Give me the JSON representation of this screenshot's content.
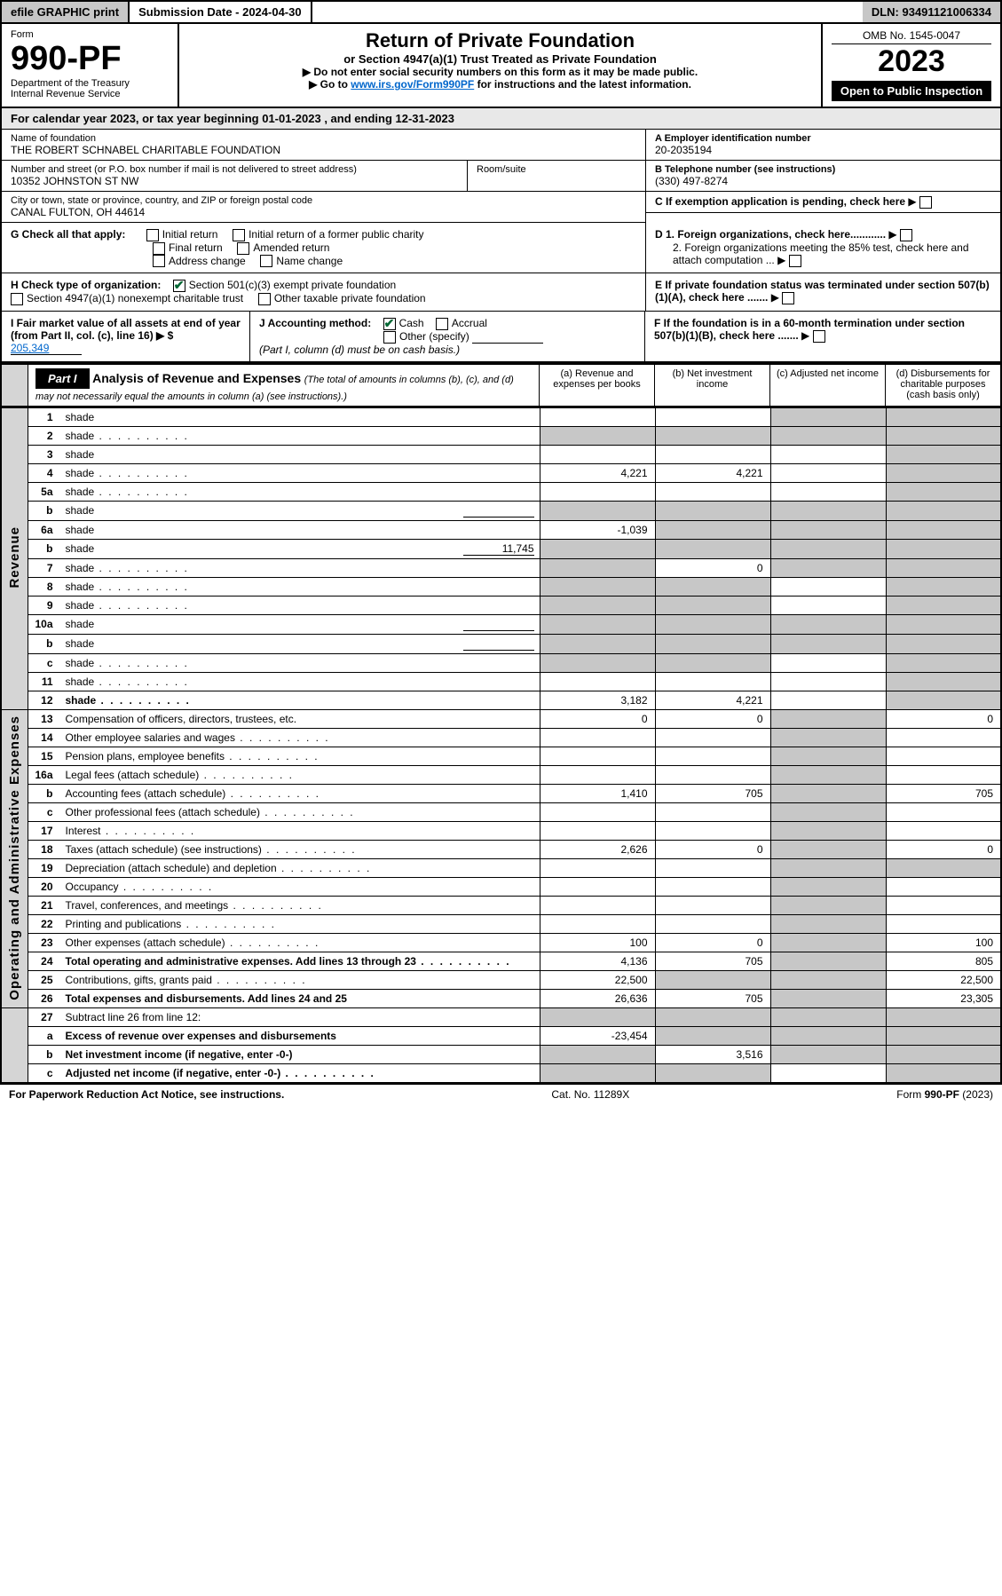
{
  "topbar": {
    "efile": "efile GRAPHIC print",
    "sub_label": "Submission Date - 2024-04-30",
    "dln": "DLN: 93491121006334"
  },
  "header": {
    "form_word": "Form",
    "form_no": "990-PF",
    "dept": "Department of the Treasury",
    "irs": "Internal Revenue Service",
    "title": "Return of Private Foundation",
    "subtitle": "or Section 4947(a)(1) Trust Treated as Private Foundation",
    "note1": "▶ Do not enter social security numbers on this form as it may be made public.",
    "note2_pre": "▶ Go to ",
    "note2_link": "www.irs.gov/Form990PF",
    "note2_post": " for instructions and the latest information.",
    "omb": "OMB No. 1545-0047",
    "year": "2023",
    "inspection": "Open to Public Inspection"
  },
  "calrow": "For calendar year 2023, or tax year beginning 01-01-2023                              , and ending 12-31-2023",
  "fnd": {
    "name_lbl": "Name of foundation",
    "name": "THE ROBERT SCHNABEL CHARITABLE FOUNDATION",
    "addr_lbl": "Number and street (or P.O. box number if mail is not delivered to street address)",
    "addr": "10352 JOHNSTON ST NW",
    "room_lbl": "Room/suite",
    "city_lbl": "City or town, state or province, country, and ZIP or foreign postal code",
    "city": "CANAL FULTON, OH  44614",
    "A_lbl": "A Employer identification number",
    "A_val": "20-2035194",
    "B_lbl": "B Telephone number (see instructions)",
    "B_val": "(330) 497-8274",
    "C_lbl": "C If exemption application is pending, check here",
    "D1": "D 1. Foreign organizations, check here............",
    "D2": "2. Foreign organizations meeting the 85% test, check here and attach computation ...",
    "E": "E  If private foundation status was terminated under section 507(b)(1)(A), check here .......",
    "F": "F  If the foundation is in a 60-month termination under section 507(b)(1)(B), check here .......",
    "G_lbl": "G Check all that apply:",
    "G_opts": [
      "Initial return",
      "Initial return of a former public charity",
      "Final return",
      "Amended return",
      "Address change",
      "Name change"
    ],
    "H_lbl": "H Check type of organization:",
    "H_opts": [
      "Section 501(c)(3) exempt private foundation",
      "Section 4947(a)(1) nonexempt charitable trust",
      "Other taxable private foundation"
    ],
    "I_lbl": "I Fair market value of all assets at end of year (from Part II, col. (c), line 16) ▶ $",
    "I_val": "205,349",
    "J_lbl": "J Accounting method:",
    "J_opts": [
      "Cash",
      "Accrual",
      "Other (specify)"
    ],
    "J_note": "(Part I, column (d) must be on cash basis.)"
  },
  "part1": {
    "label": "Part I",
    "title": "Analysis of Revenue and Expenses",
    "title_sub": "(The total of amounts in columns (b), (c), and (d) may not necessarily equal the amounts in column (a) (see instructions).)",
    "col_a": "(a) Revenue and expenses per books",
    "col_b": "(b) Net investment income",
    "col_c": "(c) Adjusted net income",
    "col_d": "(d) Disbursements for charitable purposes (cash basis only)"
  },
  "vlabels": {
    "rev": "Revenue",
    "exp": "Operating and Administrative Expenses"
  },
  "rows": [
    {
      "n": "1",
      "d": "shade",
      "a": "",
      "b": "",
      "c": "shade"
    },
    {
      "n": "2",
      "d": "shade",
      "a": "shade",
      "b": "shade",
      "c": "shade",
      "dots": true
    },
    {
      "n": "3",
      "d": "shade",
      "a": "",
      "b": "",
      "c": ""
    },
    {
      "n": "4",
      "d": "shade",
      "a": "4,221",
      "b": "4,221",
      "c": "",
      "dots": true
    },
    {
      "n": "5a",
      "d": "shade",
      "a": "",
      "b": "",
      "c": "",
      "dots": true
    },
    {
      "n": "b",
      "d": "shade",
      "a": "shade",
      "b": "shade",
      "c": "shade",
      "inline": ""
    },
    {
      "n": "6a",
      "d": "shade",
      "a": "-1,039",
      "b": "shade",
      "c": "shade"
    },
    {
      "n": "b",
      "d": "shade",
      "a": "shade",
      "b": "shade",
      "c": "shade",
      "inline": "11,745"
    },
    {
      "n": "7",
      "d": "shade",
      "a": "shade",
      "b": "0",
      "c": "shade",
      "dots": true
    },
    {
      "n": "8",
      "d": "shade",
      "a": "shade",
      "b": "shade",
      "c": "",
      "dots": true
    },
    {
      "n": "9",
      "d": "shade",
      "a": "shade",
      "b": "shade",
      "c": "",
      "dots": true
    },
    {
      "n": "10a",
      "d": "shade",
      "a": "shade",
      "b": "shade",
      "c": "shade",
      "inline": ""
    },
    {
      "n": "b",
      "d": "shade",
      "a": "shade",
      "b": "shade",
      "c": "shade",
      "inline": "",
      "dots": true
    },
    {
      "n": "c",
      "d": "shade",
      "a": "shade",
      "b": "shade",
      "c": "",
      "dots": true
    },
    {
      "n": "11",
      "d": "shade",
      "a": "",
      "b": "",
      "c": "",
      "dots": true
    },
    {
      "n": "12",
      "d": "shade",
      "a": "3,182",
      "b": "4,221",
      "c": "",
      "bold": true,
      "dots": true
    }
  ],
  "exp_rows": [
    {
      "n": "13",
      "d": "Compensation of officers, directors, trustees, etc.",
      "a": "0",
      "b": "0",
      "c": "shade",
      "dd": "0"
    },
    {
      "n": "14",
      "d": "Other employee salaries and wages",
      "a": "",
      "b": "",
      "c": "shade",
      "dd": "",
      "dots": true
    },
    {
      "n": "15",
      "d": "Pension plans, employee benefits",
      "a": "",
      "b": "",
      "c": "shade",
      "dd": "",
      "dots": true
    },
    {
      "n": "16a",
      "d": "Legal fees (attach schedule)",
      "a": "",
      "b": "",
      "c": "shade",
      "dd": "",
      "dots": true
    },
    {
      "n": "b",
      "d": "Accounting fees (attach schedule)",
      "a": "1,410",
      "b": "705",
      "c": "shade",
      "dd": "705",
      "dots": true
    },
    {
      "n": "c",
      "d": "Other professional fees (attach schedule)",
      "a": "",
      "b": "",
      "c": "shade",
      "dd": "",
      "dots": true
    },
    {
      "n": "17",
      "d": "Interest",
      "a": "",
      "b": "",
      "c": "shade",
      "dd": "",
      "dots": true
    },
    {
      "n": "18",
      "d": "Taxes (attach schedule) (see instructions)",
      "a": "2,626",
      "b": "0",
      "c": "shade",
      "dd": "0",
      "dots": true
    },
    {
      "n": "19",
      "d": "Depreciation (attach schedule) and depletion",
      "a": "",
      "b": "",
      "c": "shade",
      "dd": "shade",
      "dots": true
    },
    {
      "n": "20",
      "d": "Occupancy",
      "a": "",
      "b": "",
      "c": "shade",
      "dd": "",
      "dots": true
    },
    {
      "n": "21",
      "d": "Travel, conferences, and meetings",
      "a": "",
      "b": "",
      "c": "shade",
      "dd": "",
      "dots": true
    },
    {
      "n": "22",
      "d": "Printing and publications",
      "a": "",
      "b": "",
      "c": "shade",
      "dd": "",
      "dots": true
    },
    {
      "n": "23",
      "d": "Other expenses (attach schedule)",
      "a": "100",
      "b": "0",
      "c": "shade",
      "dd": "100",
      "dots": true
    },
    {
      "n": "24",
      "d": "Total operating and administrative expenses. Add lines 13 through 23",
      "a": "4,136",
      "b": "705",
      "c": "shade",
      "dd": "805",
      "bold": true,
      "dots": true
    },
    {
      "n": "25",
      "d": "Contributions, gifts, grants paid",
      "a": "22,500",
      "b": "shade",
      "c": "shade",
      "dd": "22,500",
      "dots": true
    },
    {
      "n": "26",
      "d": "Total expenses and disbursements. Add lines 24 and 25",
      "a": "26,636",
      "b": "705",
      "c": "shade",
      "dd": "23,305",
      "bold": true
    }
  ],
  "line27": [
    {
      "n": "27",
      "d": "Subtract line 26 from line 12:",
      "a": "shade",
      "b": "shade",
      "c": "shade",
      "dd": "shade"
    },
    {
      "n": "a",
      "d": "Excess of revenue over expenses and disbursements",
      "a": "-23,454",
      "b": "shade",
      "c": "shade",
      "dd": "shade",
      "bold": true
    },
    {
      "n": "b",
      "d": "Net investment income (if negative, enter -0-)",
      "a": "shade",
      "b": "3,516",
      "c": "shade",
      "dd": "shade",
      "bold": true
    },
    {
      "n": "c",
      "d": "Adjusted net income (if negative, enter -0-)",
      "a": "shade",
      "b": "shade",
      "c": "",
      "dd": "shade",
      "bold": true,
      "dots": true
    }
  ],
  "footer": {
    "left": "For Paperwork Reduction Act Notice, see instructions.",
    "mid": "Cat. No. 11289X",
    "right": "Form 990-PF (2023)"
  },
  "colors": {
    "shade": "#c7c7c7",
    "headerbg": "#e8e8e8",
    "link": "#0066cc",
    "check": "#006633"
  }
}
